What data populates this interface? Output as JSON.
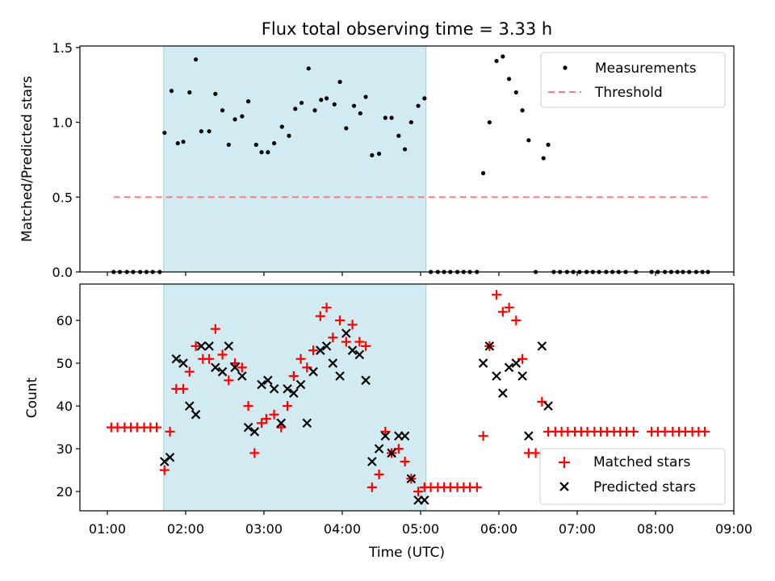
{
  "title": "Flux total observing time = 3.33 h",
  "colors": {
    "measurement": "#000000",
    "threshold": "#ff7f7f",
    "matched": "#ff0000",
    "predicted": "#000000",
    "shade": "#add8e6"
  },
  "chart_data": [
    {
      "type": "scatter",
      "panel": "top",
      "title": "Flux total observing time = 3.33 h",
      "xlabel": "",
      "ylabel": "Matched/Predicted stars",
      "xlim": [
        0.65,
        9.0
      ],
      "ylim": [
        0,
        1.51
      ],
      "yticks": [
        0,
        0.5,
        1.0,
        1.5
      ],
      "ytick_labels": [
        "0.0",
        "0.5",
        "1.0",
        "1.5"
      ],
      "xticks": [
        1,
        2,
        3,
        4,
        5,
        6,
        7,
        8,
        9
      ],
      "legend": {
        "placement": "top-right",
        "entries": [
          "Measurements",
          "Threshold"
        ]
      },
      "shaded_span": [
        1.72,
        5.07
      ],
      "threshold": {
        "name": "Threshold",
        "y": 0.5,
        "x_start": 1.08,
        "x_end": 8.67
      },
      "series": [
        {
          "name": "Measurements",
          "points": [
            [
              1.08,
              0
            ],
            [
              1.16,
              0
            ],
            [
              1.25,
              0
            ],
            [
              1.33,
              0
            ],
            [
              1.42,
              0
            ],
            [
              1.5,
              0
            ],
            [
              1.58,
              0
            ],
            [
              1.67,
              0
            ],
            [
              1.73,
              0.93
            ],
            [
              1.82,
              1.21
            ],
            [
              1.9,
              0.86
            ],
            [
              1.97,
              0.87
            ],
            [
              2.05,
              1.2
            ],
            [
              2.13,
              1.42
            ],
            [
              2.2,
              0.94
            ],
            [
              2.3,
              0.94
            ],
            [
              2.38,
              1.19
            ],
            [
              2.47,
              1.08
            ],
            [
              2.55,
              0.85
            ],
            [
              2.63,
              1.02
            ],
            [
              2.72,
              1.04
            ],
            [
              2.8,
              1.14
            ],
            [
              2.9,
              0.85
            ],
            [
              2.97,
              0.8
            ],
            [
              3.05,
              0.8
            ],
            [
              3.13,
              0.86
            ],
            [
              3.23,
              0.97
            ],
            [
              3.32,
              0.91
            ],
            [
              3.4,
              1.09
            ],
            [
              3.48,
              1.13
            ],
            [
              3.57,
              1.36
            ],
            [
              3.65,
              1.08
            ],
            [
              3.73,
              1.15
            ],
            [
              3.8,
              1.16
            ],
            [
              3.9,
              1.12
            ],
            [
              3.97,
              1.27
            ],
            [
              4.05,
              0.96
            ],
            [
              4.15,
              1.11
            ],
            [
              4.23,
              1.06
            ],
            [
              4.3,
              1.17
            ],
            [
              4.38,
              0.78
            ],
            [
              4.47,
              0.79
            ],
            [
              4.55,
              1.03
            ],
            [
              4.63,
              1.03
            ],
            [
              4.72,
              0.91
            ],
            [
              4.8,
              0.82
            ],
            [
              4.88,
              1.0
            ],
            [
              4.97,
              1.11
            ],
            [
              5.05,
              1.16
            ],
            [
              5.13,
              0
            ],
            [
              5.22,
              0
            ],
            [
              5.3,
              0
            ],
            [
              5.38,
              0
            ],
            [
              5.47,
              0
            ],
            [
              5.55,
              0
            ],
            [
              5.63,
              0
            ],
            [
              5.72,
              0
            ],
            [
              5.8,
              0.66
            ],
            [
              5.88,
              1.0
            ],
            [
              5.97,
              1.41
            ],
            [
              6.05,
              1.44
            ],
            [
              6.13,
              1.29
            ],
            [
              6.22,
              1.2
            ],
            [
              6.3,
              1.08
            ],
            [
              6.38,
              0.88
            ],
            [
              6.47,
              0
            ],
            [
              6.57,
              0.76
            ],
            [
              6.63,
              0.85
            ],
            [
              6.7,
              0
            ],
            [
              6.78,
              0
            ],
            [
              6.87,
              0
            ],
            [
              6.95,
              0
            ],
            [
              7.03,
              0
            ],
            [
              7.12,
              0
            ],
            [
              7.2,
              0
            ],
            [
              7.28,
              0
            ],
            [
              7.37,
              0
            ],
            [
              7.45,
              0
            ],
            [
              7.53,
              0
            ],
            [
              7.62,
              0
            ],
            [
              7.75,
              0
            ],
            [
              7.95,
              0
            ],
            [
              8.03,
              0
            ],
            [
              8.12,
              0
            ],
            [
              8.2,
              0
            ],
            [
              8.28,
              0
            ],
            [
              8.35,
              0
            ],
            [
              8.43,
              0
            ],
            [
              8.52,
              0
            ],
            [
              8.6,
              0
            ],
            [
              8.67,
              0
            ]
          ]
        }
      ]
    },
    {
      "type": "scatter",
      "panel": "bottom",
      "xlabel": "Time (UTC)",
      "ylabel": "Count",
      "xlim": [
        0.65,
        9.0
      ],
      "ylim": [
        15.5,
        68.5
      ],
      "yticks": [
        20,
        30,
        40,
        50,
        60
      ],
      "ytick_labels": [
        "20",
        "30",
        "40",
        "50",
        "60"
      ],
      "xticks": [
        1,
        2,
        3,
        4,
        5,
        6,
        7,
        8,
        9
      ],
      "xtick_labels": [
        "01:00",
        "02:00",
        "03:00",
        "04:00",
        "05:00",
        "06:00",
        "07:00",
        "08:00",
        "09:00"
      ],
      "legend": {
        "placement": "bottom-right",
        "entries": [
          "Matched stars",
          "Predicted stars"
        ]
      },
      "shaded_span": [
        1.72,
        5.07
      ],
      "series": [
        {
          "name": "Matched stars",
          "marker": "plus",
          "points": [
            [
              1.05,
              35
            ],
            [
              1.13,
              35
            ],
            [
              1.22,
              35
            ],
            [
              1.3,
              35
            ],
            [
              1.38,
              35
            ],
            [
              1.47,
              35
            ],
            [
              1.55,
              35
            ],
            [
              1.63,
              35
            ],
            [
              1.73,
              25
            ],
            [
              1.8,
              34
            ],
            [
              1.88,
              44
            ],
            [
              1.97,
              44
            ],
            [
              2.05,
              48
            ],
            [
              2.13,
              54
            ],
            [
              2.22,
              51
            ],
            [
              2.3,
              51
            ],
            [
              2.38,
              58
            ],
            [
              2.47,
              52
            ],
            [
              2.55,
              46
            ],
            [
              2.63,
              50
            ],
            [
              2.72,
              49
            ],
            [
              2.8,
              40
            ],
            [
              2.88,
              29
            ],
            [
              2.97,
              36
            ],
            [
              3.03,
              37
            ],
            [
              3.13,
              38
            ],
            [
              3.22,
              35
            ],
            [
              3.3,
              40
            ],
            [
              3.38,
              47
            ],
            [
              3.47,
              51
            ],
            [
              3.55,
              49
            ],
            [
              3.63,
              53
            ],
            [
              3.72,
              61
            ],
            [
              3.8,
              63
            ],
            [
              3.88,
              56
            ],
            [
              3.97,
              60
            ],
            [
              4.05,
              55
            ],
            [
              4.13,
              59
            ],
            [
              4.22,
              55
            ],
            [
              4.3,
              54
            ],
            [
              4.38,
              21
            ],
            [
              4.47,
              24
            ],
            [
              4.55,
              34
            ],
            [
              4.63,
              29
            ],
            [
              4.72,
              30
            ],
            [
              4.8,
              27
            ],
            [
              4.88,
              23
            ],
            [
              4.97,
              20
            ],
            [
              5.05,
              21
            ],
            [
              5.13,
              21
            ],
            [
              5.22,
              21
            ],
            [
              5.3,
              21
            ],
            [
              5.38,
              21
            ],
            [
              5.47,
              21
            ],
            [
              5.55,
              21
            ],
            [
              5.63,
              21
            ],
            [
              5.72,
              21
            ],
            [
              5.8,
              33
            ],
            [
              5.88,
              54
            ],
            [
              5.97,
              66
            ],
            [
              6.05,
              62
            ],
            [
              6.13,
              63
            ],
            [
              6.22,
              60
            ],
            [
              6.3,
              51
            ],
            [
              6.38,
              29
            ],
            [
              6.47,
              29
            ],
            [
              6.55,
              41
            ],
            [
              6.63,
              34
            ],
            [
              6.72,
              34
            ],
            [
              6.8,
              34
            ],
            [
              6.88,
              34
            ],
            [
              6.97,
              34
            ],
            [
              7.05,
              34
            ],
            [
              7.13,
              34
            ],
            [
              7.22,
              34
            ],
            [
              7.3,
              34
            ],
            [
              7.38,
              34
            ],
            [
              7.47,
              34
            ],
            [
              7.55,
              34
            ],
            [
              7.63,
              34
            ],
            [
              7.72,
              34
            ],
            [
              7.95,
              34
            ],
            [
              8.03,
              34
            ],
            [
              8.12,
              34
            ],
            [
              8.22,
              34
            ],
            [
              8.3,
              34
            ],
            [
              8.38,
              34
            ],
            [
              8.47,
              34
            ],
            [
              8.55,
              34
            ],
            [
              8.63,
              34
            ]
          ]
        },
        {
          "name": "Predicted stars",
          "marker": "x",
          "points": [
            [
              1.73,
              27
            ],
            [
              1.8,
              28
            ],
            [
              1.88,
              51
            ],
            [
              1.97,
              50
            ],
            [
              2.05,
              40
            ],
            [
              2.13,
              38
            ],
            [
              2.2,
              54
            ],
            [
              2.3,
              54
            ],
            [
              2.38,
              49
            ],
            [
              2.47,
              48
            ],
            [
              2.55,
              54
            ],
            [
              2.63,
              49
            ],
            [
              2.72,
              47
            ],
            [
              2.8,
              35
            ],
            [
              2.88,
              34
            ],
            [
              2.97,
              45
            ],
            [
              3.05,
              46
            ],
            [
              3.13,
              44
            ],
            [
              3.22,
              36
            ],
            [
              3.3,
              44
            ],
            [
              3.38,
              43
            ],
            [
              3.47,
              45
            ],
            [
              3.55,
              36
            ],
            [
              3.63,
              48
            ],
            [
              3.72,
              53
            ],
            [
              3.8,
              54
            ],
            [
              3.88,
              50
            ],
            [
              3.97,
              47
            ],
            [
              4.05,
              57
            ],
            [
              4.13,
              53
            ],
            [
              4.22,
              52
            ],
            [
              4.3,
              46
            ],
            [
              4.38,
              27
            ],
            [
              4.47,
              30
            ],
            [
              4.55,
              33
            ],
            [
              4.63,
              29
            ],
            [
              4.72,
              33
            ],
            [
              4.8,
              33
            ],
            [
              4.88,
              23
            ],
            [
              4.97,
              18
            ],
            [
              5.05,
              18
            ],
            [
              5.8,
              50
            ],
            [
              5.88,
              54
            ],
            [
              5.97,
              47
            ],
            [
              6.05,
              43
            ],
            [
              6.13,
              49
            ],
            [
              6.22,
              50
            ],
            [
              6.3,
              47
            ],
            [
              6.38,
              33
            ],
            [
              6.55,
              54
            ],
            [
              6.63,
              40
            ]
          ]
        }
      ]
    }
  ]
}
